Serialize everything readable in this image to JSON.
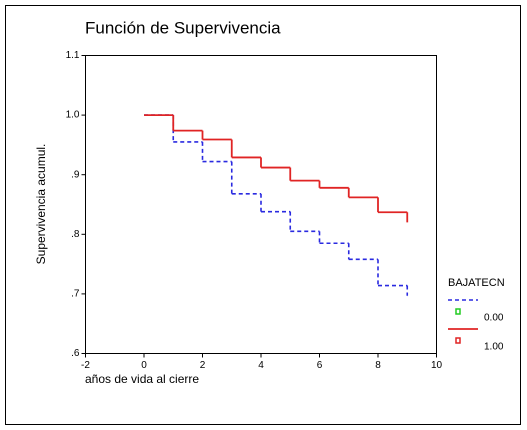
{
  "chart_data": {
    "type": "step",
    "title": "Función de Supervivencia",
    "xlabel": "años de vida al cierre",
    "ylabel": "Supervivencia acumul.",
    "legend_title": "BAJATECN",
    "legend": "right",
    "x": [
      0,
      1,
      2,
      3,
      4,
      5,
      6,
      7,
      8,
      9,
      9
    ],
    "series": [
      {
        "name": "0.00",
        "color": "#2a2ae0",
        "marker_color": "#22cc22",
        "dashed": true,
        "values": [
          1.0,
          0.955,
          0.922,
          0.868,
          0.838,
          0.805,
          0.785,
          0.758,
          0.714,
          0.697,
          0.697
        ]
      },
      {
        "name": "1.00",
        "color": "#e02424",
        "marker_color": "#e02424",
        "dashed": false,
        "values": [
          1.0,
          0.974,
          0.959,
          0.929,
          0.912,
          0.89,
          0.878,
          0.862,
          0.837,
          0.82,
          0.82
        ]
      }
    ],
    "xlim": [
      -2,
      10
    ],
    "xticks": [
      -2,
      0,
      2,
      4,
      6,
      8,
      10
    ],
    "ylim": [
      0.6,
      1.1
    ],
    "yticks": [
      {
        "value": 0.6,
        "label": ".6"
      },
      {
        "value": 0.7,
        "label": ".7"
      },
      {
        "value": 0.8,
        "label": ".8"
      },
      {
        "value": 0.9,
        "label": ".9"
      },
      {
        "value": 1.0,
        "label": "1.0"
      },
      {
        "value": 1.1,
        "label": "1.1"
      }
    ]
  }
}
